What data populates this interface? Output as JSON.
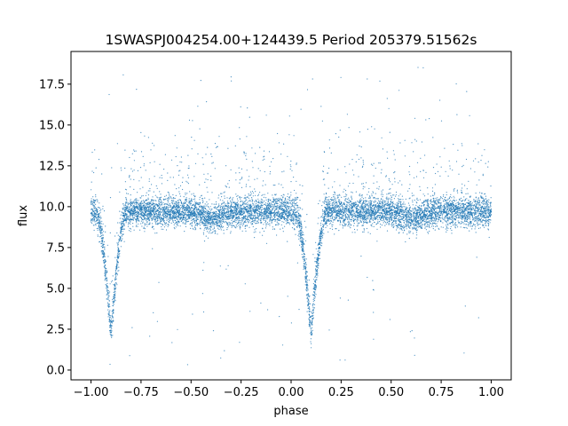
{
  "chart_data": {
    "type": "scatter",
    "title": "1SWASPJ004254.00+124439.5 Period 205379.51562s",
    "xlabel": "phase",
    "ylabel": "flux",
    "xlim": [
      -1.1,
      1.1
    ],
    "ylim": [
      -0.6,
      19.5
    ],
    "xticks": [
      -1.0,
      -0.75,
      -0.5,
      -0.25,
      0.0,
      0.25,
      0.5,
      0.75,
      1.0
    ],
    "xtick_labels": [
      "−1.00",
      "−0.75",
      "−0.50",
      "−0.25",
      "0.00",
      "0.25",
      "0.50",
      "0.75",
      "1.00"
    ],
    "yticks": [
      0.0,
      2.5,
      5.0,
      7.5,
      10.0,
      12.5,
      15.0,
      17.5
    ],
    "ytick_labels": [
      "0.0",
      "2.5",
      "5.0",
      "7.5",
      "10.0",
      "12.5",
      "15.0",
      "17.5"
    ],
    "grid": false,
    "marker_color": "#1f77b4",
    "light_curve": {
      "baseline_flux": 9.7,
      "scatter": 0.45,
      "primary_eclipse_phases": [
        -0.9,
        0.1
      ],
      "eclipse_min_flux": 2.2,
      "eclipse_half_width": 0.075,
      "secondary_eclipse_phases": [
        -0.4,
        0.6
      ],
      "secondary_depth": 0.5,
      "phase_range": [
        -1.0,
        1.0
      ],
      "n_points": 9000
    },
    "series": [
      {
        "values": [
          [
            -1.0,
            9.6
          ],
          [
            -0.95,
            9.3
          ],
          [
            -0.92,
            6.0
          ],
          [
            -0.9,
            2.3
          ],
          [
            -0.88,
            5.0
          ],
          [
            -0.85,
            8.5
          ],
          [
            -0.8,
            9.8
          ],
          [
            -0.75,
            9.9
          ],
          [
            -0.7,
            9.9
          ],
          [
            -0.6,
            9.8
          ],
          [
            -0.5,
            9.5
          ],
          [
            -0.4,
            9.2
          ],
          [
            -0.3,
            9.8
          ],
          [
            -0.2,
            9.9
          ],
          [
            -0.1,
            9.7
          ],
          [
            -0.05,
            9.3
          ],
          [
            0.08,
            6.0
          ],
          [
            0.1,
            2.3
          ],
          [
            0.12,
            5.0
          ],
          [
            0.15,
            8.5
          ],
          [
            0.2,
            9.8
          ],
          [
            0.3,
            9.9
          ],
          [
            0.4,
            9.8
          ],
          [
            0.5,
            9.6
          ],
          [
            0.6,
            9.2
          ],
          [
            0.7,
            9.8
          ],
          [
            0.8,
            9.9
          ],
          [
            0.9,
            9.8
          ],
          [
            1.0,
            9.7
          ]
        ]
      }
    ]
  }
}
